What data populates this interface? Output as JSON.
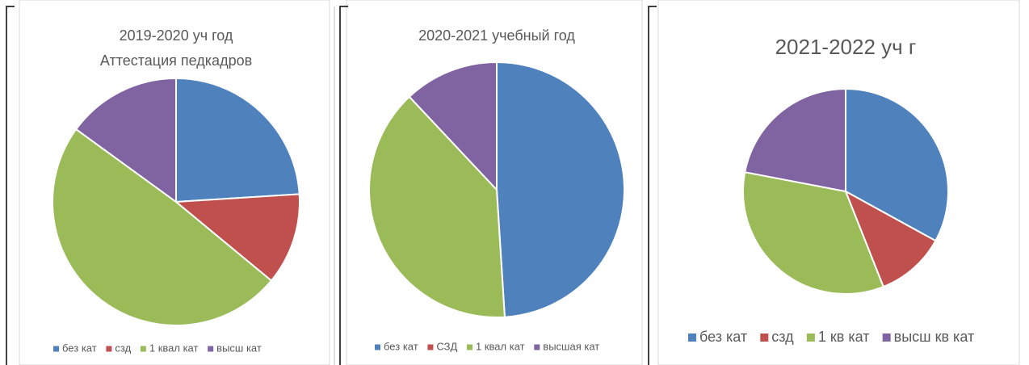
{
  "charts": [
    {
      "type": "pie",
      "title": "2019-2020 уч год",
      "subtitle": "Аттестация педкадров",
      "categories": [
        "без кат",
        "сзд",
        "1 квал кат",
        "высш кат"
      ],
      "values": [
        24,
        12,
        49,
        15
      ],
      "colors": [
        "#4f81bd",
        "#c0504d",
        "#9bbb59",
        "#8064a2"
      ]
    },
    {
      "type": "pie",
      "title": "2020-2021 учебный год",
      "categories": [
        "без кат",
        "СЗД",
        "1 квал кат",
        "высшая кат"
      ],
      "values": [
        49,
        0,
        39,
        12
      ],
      "colors": [
        "#4f81bd",
        "#c0504d",
        "#9bbb59",
        "#8064a2"
      ]
    },
    {
      "type": "pie",
      "title": "2021-2022 уч г",
      "categories": [
        "без кат",
        "сзд",
        "1 кв кат",
        "высш кв кат"
      ],
      "values": [
        33,
        11,
        34,
        22
      ],
      "colors": [
        "#4f81bd",
        "#c0504d",
        "#9bbb59",
        "#8064a2"
      ]
    }
  ]
}
